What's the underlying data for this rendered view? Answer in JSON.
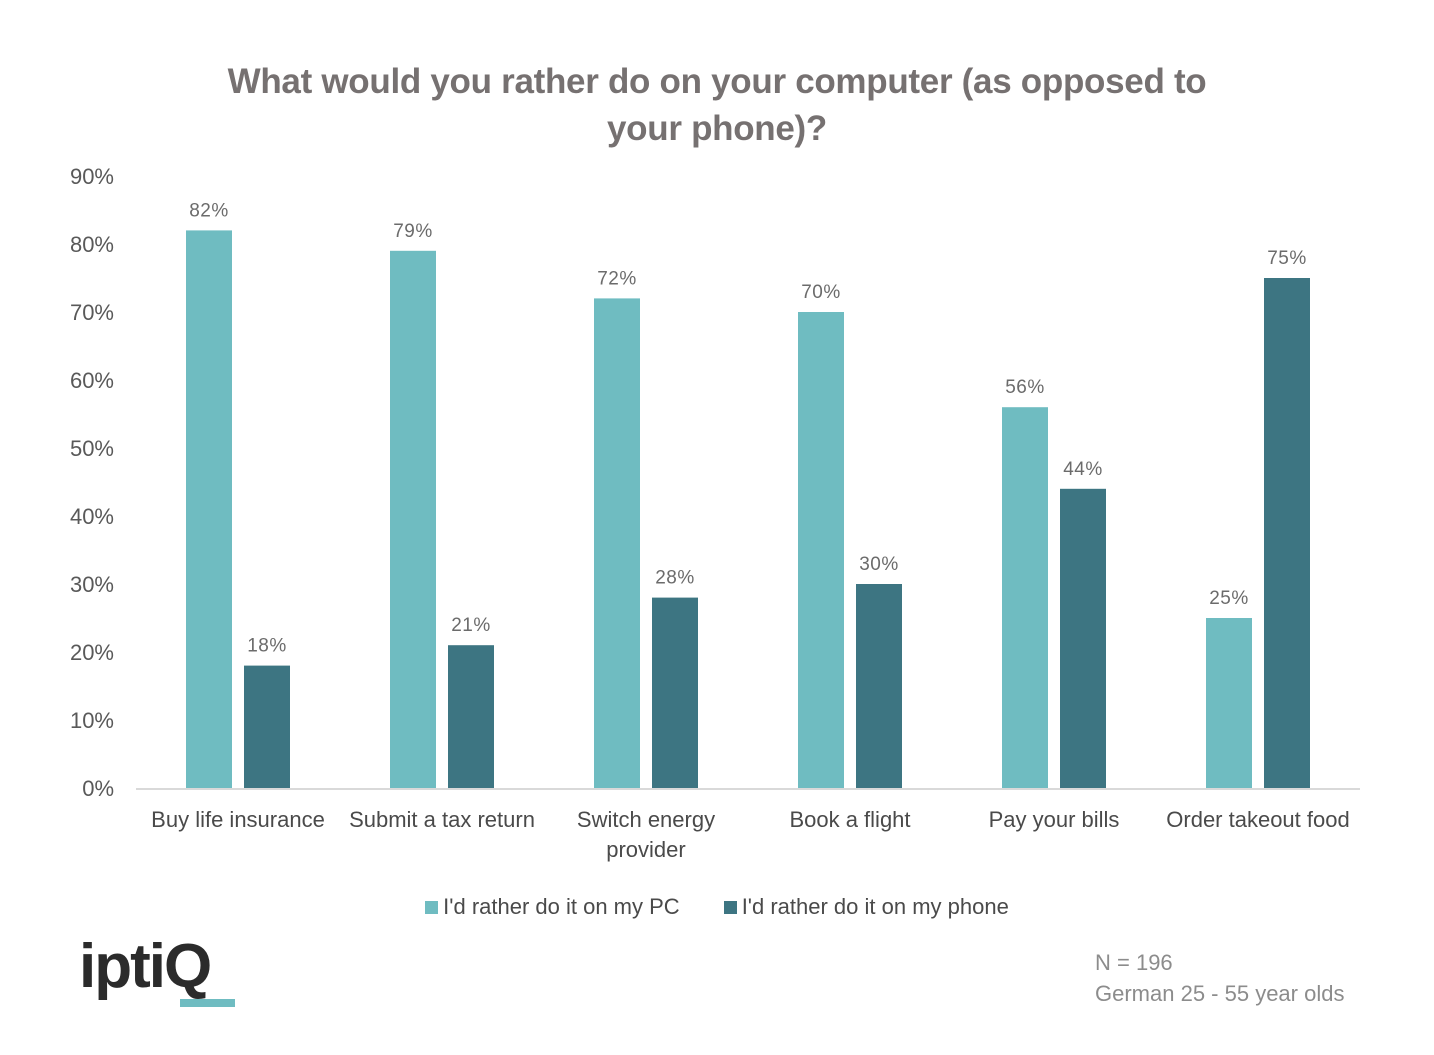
{
  "chart_data": {
    "type": "bar",
    "title": "What would you rather do on your computer (as opposed to your phone)?",
    "title_lines": [
      "What would you rather do on your computer (as opposed to",
      "your phone)?"
    ],
    "xlabel": "",
    "ylabel": "",
    "ylim": [
      0,
      90
    ],
    "yticks": [
      0,
      10,
      20,
      30,
      40,
      50,
      60,
      70,
      80,
      90
    ],
    "ytick_labels": [
      "0%",
      "10%",
      "20%",
      "30%",
      "40%",
      "50%",
      "60%",
      "70%",
      "80%",
      "90%"
    ],
    "grid": false,
    "legend_position": "bottom",
    "categories": [
      [
        "Buy life insurance"
      ],
      [
        "Submit a tax return"
      ],
      [
        "Switch energy",
        "provider"
      ],
      [
        "Book a flight"
      ],
      [
        "Pay your bills"
      ],
      [
        "Order takeout food"
      ]
    ],
    "series": [
      {
        "name": "I'd rather do it on my PC",
        "color": "#6fbcc1",
        "values": [
          82,
          79,
          72,
          70,
          56,
          25
        ],
        "labels": [
          "82%",
          "79%",
          "72%",
          "70%",
          "56%",
          "25%"
        ]
      },
      {
        "name": "I'd rather do it on my phone",
        "color": "#3d7582",
        "values": [
          18,
          21,
          28,
          30,
          44,
          75
        ],
        "labels": [
          "18%",
          "21%",
          "28%",
          "30%",
          "44%",
          "75%"
        ]
      }
    ]
  },
  "branding": {
    "logo_text": "iptiQ",
    "accent_color": "#6fbcc1"
  },
  "footnote": {
    "sample_size": "N = 196",
    "population": "German 25 - 55 year olds"
  }
}
